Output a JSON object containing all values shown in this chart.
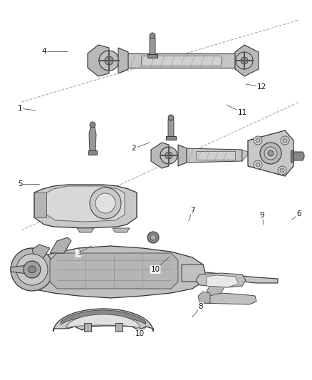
{
  "bg_color": "#ffffff",
  "fig_width": 4.38,
  "fig_height": 5.33,
  "dpi": 100,
  "part_gray": "#d0d0d0",
  "part_dark": "#888888",
  "part_edge": "#444444",
  "part_darkest": "#555555",
  "label_color": "#111111",
  "label_fontsize": 7.5,
  "leader_lw": 0.6,
  "diag_color": "#999999",
  "diag_lw": 0.6
}
